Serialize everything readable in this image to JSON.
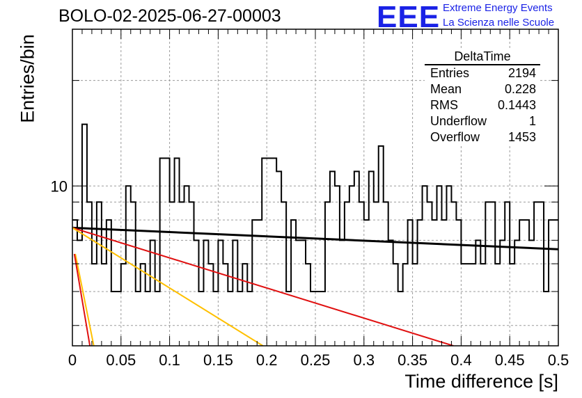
{
  "header": {
    "title": "BOLO-02-2025-06-27-00003",
    "logo_text": "EEE",
    "logo_line1": "Extreme Energy Events",
    "logo_line2": "La Scienza nelle Scuole"
  },
  "stats": {
    "title": "DeltaTime",
    "rows": [
      {
        "label": "Entries",
        "value": "2194"
      },
      {
        "label": "Mean",
        "value": "0.228"
      },
      {
        "label": "RMS",
        "value": "0.1443"
      },
      {
        "label": "Underflow",
        "value": "1"
      },
      {
        "label": "Overflow",
        "value": "1453"
      }
    ]
  },
  "chart_data": {
    "type": "histogram",
    "title": "BOLO-02-2025-06-27-00003",
    "xlabel": "Time difference [s]",
    "ylabel": "Entries/bin",
    "xlim": [
      0,
      0.5
    ],
    "ylim": [
      3.5,
      28
    ],
    "yscale": "log",
    "grid": true,
    "bin_width": 0.005,
    "x_ticks": [
      "0",
      "0.05",
      "0.1",
      "0.15",
      "0.2",
      "0.25",
      "0.3",
      "0.35",
      "0.4",
      "0.45",
      "0.5"
    ],
    "y_ticks": [
      "10"
    ],
    "counts": [
      8,
      7,
      15,
      9,
      6,
      9,
      6,
      8,
      5,
      5,
      6,
      10,
      9,
      5,
      6,
      5,
      7,
      5,
      12,
      12,
      9,
      12,
      9,
      10,
      9,
      7,
      5,
      7,
      6,
      5,
      7,
      6,
      5,
      7,
      5,
      6,
      5,
      8,
      8,
      12,
      12,
      12,
      11,
      9,
      5,
      8,
      7,
      7,
      6,
      5,
      5,
      5,
      9,
      11,
      10,
      7,
      9,
      10,
      11,
      9,
      8,
      11,
      9,
      13,
      9,
      7,
      6,
      5,
      6,
      8,
      6,
      8,
      10,
      9,
      8,
      10,
      8,
      10,
      9,
      8,
      6,
      6,
      6,
      7,
      6,
      9,
      9,
      6,
      7,
      9,
      6,
      7,
      8,
      8,
      7,
      9,
      9,
      5,
      8,
      8
    ],
    "fits": [
      {
        "color": "#000000",
        "x0": 0.0,
        "y0": 7.6,
        "x1": 0.5,
        "y1": 6.6
      },
      {
        "color": "#e01010",
        "x0": 0.0,
        "y0": 7.6,
        "x1": 0.392,
        "y1": 3.5
      },
      {
        "color": "#ffc000",
        "x0": 0.0,
        "y0": 7.6,
        "x1": 0.196,
        "y1": 3.5
      },
      {
        "color": "#ffc000",
        "x0": 0.003,
        "y0": 6.4,
        "x1": 0.022,
        "y1": 3.5
      },
      {
        "color": "#e01010",
        "x0": 0.002,
        "y0": 6.4,
        "x1": 0.018,
        "y1": 3.5
      }
    ]
  }
}
